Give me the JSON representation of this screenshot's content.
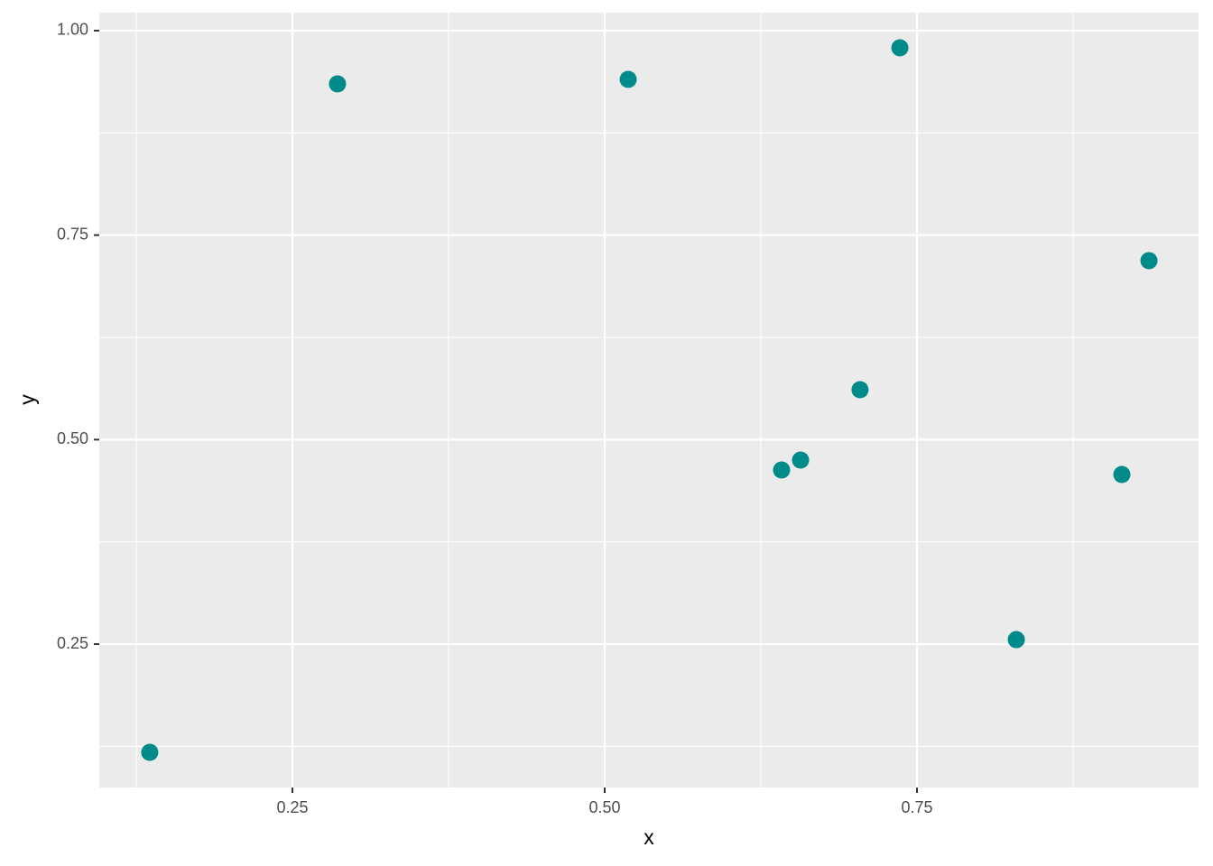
{
  "chart_data": {
    "type": "scatter",
    "x_label": "x",
    "y_label": "y",
    "x": [
      0.1358,
      0.2861,
      0.5188,
      0.7363,
      0.9357,
      0.7044,
      0.6416,
      0.6568,
      0.914,
      0.8295
    ],
    "series": [
      {
        "color": "#008b8b",
        "values": [
          0.1177,
          0.9349,
          0.9404,
          0.979,
          0.7188,
          0.561,
          0.4629,
          0.475,
          0.4574,
          0.2555
        ]
      }
    ],
    "xlim": [
      0.0954,
      0.9754
    ],
    "ylim": [
      0.0747,
      1.022
    ],
    "xticks": [
      0.25,
      {
        "value": 0.5,
        "label": "0.50"
      },
      0.75
    ],
    "yticks": [
      0.25,
      {
        "value": 0.5,
        "label": "0.50"
      },
      0.75,
      {
        "value": 1,
        "label": "1.00"
      }
    ],
    "x_minor_ticks": [
      0.125,
      0.375,
      0.625,
      0.875
    ],
    "y_minor_ticks": [
      0.125,
      0.375,
      0.625,
      0.875
    ],
    "grid": true
  }
}
